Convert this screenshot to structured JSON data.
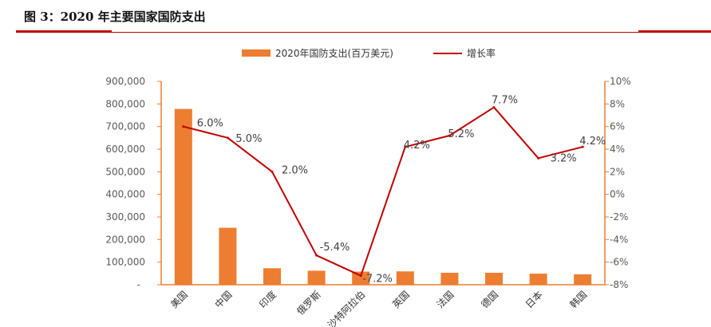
{
  "caption": "图 3：2020 年主要国家国防支出",
  "chart_data": {
    "type": "bar",
    "categories": [
      "美国",
      "中国",
      "印度",
      "俄罗斯",
      "沙特阿拉伯",
      "英国",
      "法国",
      "德国",
      "日本",
      "韩国"
    ],
    "series": [
      {
        "name": "2020年国防支出(百万美元)",
        "type": "bar",
        "axis": "left",
        "color": "#ed7d31",
        "values": [
          778000,
          252000,
          73000,
          62000,
          58000,
          59000,
          53000,
          53000,
          49000,
          46000
        ]
      },
      {
        "name": "增长率",
        "type": "line",
        "axis": "right",
        "color": "#c00000",
        "values": [
          6.0,
          5.0,
          2.0,
          -5.4,
          -7.2,
          4.2,
          5.2,
          7.7,
          3.2,
          4.2
        ],
        "labels": [
          "6.0%",
          "5.0%",
          "2.0%",
          "-5.4%",
          "-7.2%",
          "4.2%",
          "5.2%",
          "7.7%",
          "3.2%",
          "4.2%"
        ]
      }
    ],
    "y_left": {
      "range": [
        0,
        900000
      ],
      "ticks": [
        "-",
        "100,000",
        "200,000",
        "300,000",
        "400,000",
        "500,000",
        "600,000",
        "700,000",
        "800,000",
        "900,000"
      ]
    },
    "y_right": {
      "range": [
        -8,
        10
      ],
      "ticks": [
        "-8%",
        "-6%",
        "-4%",
        "-2%",
        "0%",
        "2%",
        "4%",
        "6%",
        "8%",
        "10%"
      ]
    },
    "legend_placement": "top-center",
    "grid": false
  }
}
